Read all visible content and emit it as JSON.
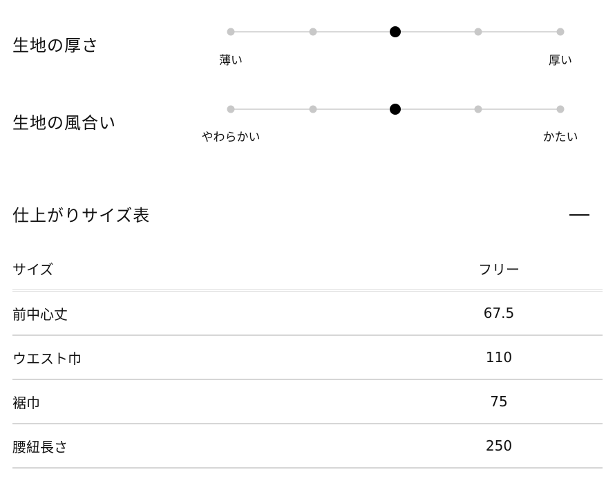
{
  "attributes": [
    {
      "title": "生地の厚さ",
      "min_label": "薄い",
      "max_label": "厚い",
      "steps": 5,
      "selected_index": 2
    },
    {
      "title": "生地の風合い",
      "min_label": "やわらかい",
      "max_label": "かたい",
      "steps": 5,
      "selected_index": 2
    }
  ],
  "size_table": {
    "title": "仕上がりサイズ表",
    "collapse_icon": "minus-icon",
    "header": {
      "label": "サイズ",
      "value": "フリー"
    },
    "rows": [
      {
        "label": "前中心丈",
        "value": "67.5"
      },
      {
        "label": "ウエスト巾",
        "value": "110"
      },
      {
        "label": "裾巾",
        "value": "75"
      },
      {
        "label": "腰紐長さ",
        "value": "250"
      }
    ]
  }
}
